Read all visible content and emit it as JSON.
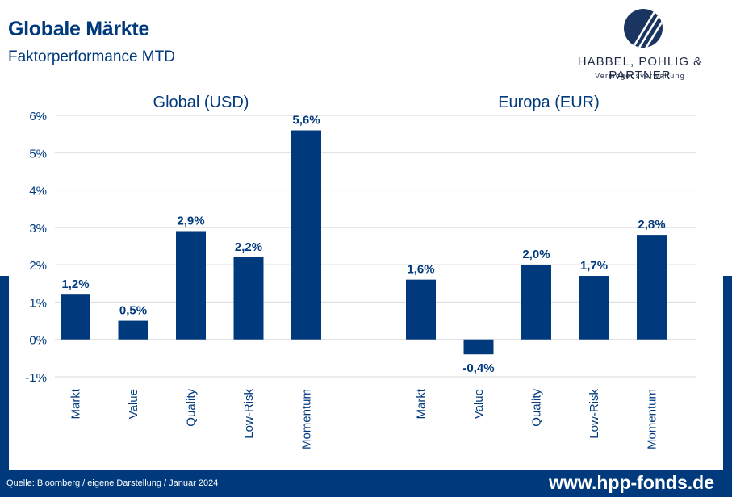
{
  "header": {
    "title": "Globale Märkte",
    "subtitle": "Faktorperformance MTD"
  },
  "logo": {
    "name": "HABBEL, POHLIG & PARTNER",
    "tagline": "Vermögensverwaltung"
  },
  "footer": {
    "source": "Quelle: Bloomberg / eigene Darstellung / Januar 2024",
    "url": "www.hpp-fonds.de"
  },
  "colors": {
    "bar": "#003a7d",
    "accent": "#003a7d",
    "gridline": "#d9d9d9"
  },
  "chart_data": [
    {
      "type": "bar",
      "title": "Global (USD)",
      "categories": [
        "Markt",
        "Value",
        "Quality",
        "Low-Risk",
        "Momentum"
      ],
      "values": [
        1.2,
        0.5,
        2.9,
        2.2,
        5.6
      ],
      "data_labels": [
        "1,2%",
        "0,5%",
        "2,9%",
        "2,2%",
        "5,6%"
      ],
      "ylim": [
        -1,
        6
      ],
      "yticks": [
        "-1%",
        "0%",
        "1%",
        "2%",
        "3%",
        "4%",
        "5%",
        "6%"
      ],
      "grid": true
    },
    {
      "type": "bar",
      "title": "Europa (EUR)",
      "categories": [
        "Markt",
        "Value",
        "Quality",
        "Low-Risk",
        "Momentum"
      ],
      "values": [
        1.6,
        -0.4,
        2.0,
        1.7,
        2.8
      ],
      "data_labels": [
        "1,6%",
        "-0,4%",
        "2,0%",
        "1,7%",
        "2,8%"
      ],
      "ylim": [
        -1,
        6
      ],
      "grid": true
    }
  ]
}
